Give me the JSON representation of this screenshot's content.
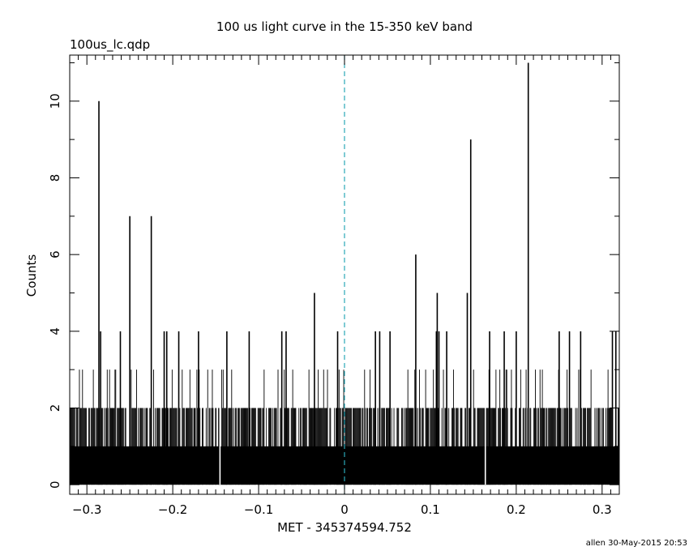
{
  "chart_data": {
    "type": "bar",
    "title": "100 us light curve in the 15-350 keV band",
    "subtitle": "100us_lc.qdp",
    "xlabel": "MET - 345374594.752",
    "ylabel": "Counts",
    "footer": "allen 30-May-2015 20:53",
    "xlim": [
      -0.32,
      0.32
    ],
    "ylim": [
      -0.25,
      11.2
    ],
    "x_ticks": [
      -0.3,
      -0.2,
      -0.1,
      0,
      0.1,
      0.2,
      0.3
    ],
    "x_tick_labels": [
      "−0.3",
      "−0.2",
      "−0.1",
      "0",
      "0.1",
      "0.2",
      "0.3"
    ],
    "y_ticks": [
      0,
      2,
      4,
      6,
      8,
      10
    ],
    "y_tick_labels": [
      "0",
      "2",
      "4",
      "6",
      "8",
      "10"
    ],
    "bin_width": 0.0001,
    "background_level": 1,
    "reference_line": {
      "x": 0,
      "style": "dashed",
      "color": "#2aa8b8"
    },
    "colors": {
      "bars": "#000000",
      "axes": "#000000"
    },
    "zero_gaps": [
      -0.145,
      0.164
    ],
    "spikes": [
      {
        "x": -0.286,
        "y": 10
      },
      {
        "x": -0.284,
        "y": 4
      },
      {
        "x": -0.261,
        "y": 4
      },
      {
        "x": -0.25,
        "y": 7
      },
      {
        "x": -0.225,
        "y": 7
      },
      {
        "x": -0.21,
        "y": 4
      },
      {
        "x": -0.207,
        "y": 4
      },
      {
        "x": -0.193,
        "y": 4
      },
      {
        "x": -0.17,
        "y": 4
      },
      {
        "x": -0.137,
        "y": 4
      },
      {
        "x": -0.111,
        "y": 4
      },
      {
        "x": -0.073,
        "y": 4
      },
      {
        "x": -0.068,
        "y": 4
      },
      {
        "x": -0.035,
        "y": 5
      },
      {
        "x": -0.008,
        "y": 4
      },
      {
        "x": 0.036,
        "y": 4
      },
      {
        "x": 0.041,
        "y": 4
      },
      {
        "x": 0.053,
        "y": 4
      },
      {
        "x": 0.083,
        "y": 6
      },
      {
        "x": 0.107,
        "y": 4
      },
      {
        "x": 0.108,
        "y": 5
      },
      {
        "x": 0.11,
        "y": 4
      },
      {
        "x": 0.119,
        "y": 4
      },
      {
        "x": 0.143,
        "y": 5
      },
      {
        "x": 0.147,
        "y": 9
      },
      {
        "x": 0.169,
        "y": 4
      },
      {
        "x": 0.186,
        "y": 4
      },
      {
        "x": 0.2,
        "y": 4
      },
      {
        "x": 0.214,
        "y": 11
      },
      {
        "x": 0.25,
        "y": 4
      },
      {
        "x": 0.262,
        "y": 4
      },
      {
        "x": 0.275,
        "y": 4
      },
      {
        "x": 0.312,
        "y": 4
      },
      {
        "x": 0.316,
        "y": 4
      }
    ]
  }
}
